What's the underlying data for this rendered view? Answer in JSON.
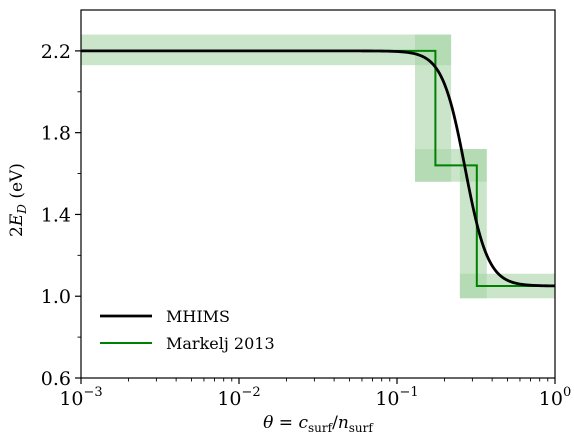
{
  "chart_data": {
    "type": "line",
    "xscale": "log",
    "xlim": [
      0.001,
      1
    ],
    "ylim": [
      0.6,
      2.4
    ],
    "xlabel": "θ = c_surf / n_surf",
    "xlabel_parts": {
      "theta": "θ",
      "eq": " = ",
      "c": "c",
      "c_sub": "surf",
      "slash": "/",
      "n": "n",
      "n_sub": "surf"
    },
    "ylabel": "2E_D (eV)",
    "ylabel_parts": {
      "two": "2",
      "E": "E",
      "sub": "D",
      "unit": " (eV)"
    },
    "x_ticks": [
      {
        "value": 0.001,
        "base": "10",
        "exp": "−3"
      },
      {
        "value": 0.01,
        "base": "10",
        "exp": "−2"
      },
      {
        "value": 0.1,
        "base": "10",
        "exp": "−1"
      },
      {
        "value": 1,
        "base": "10",
        "exp": "0"
      }
    ],
    "y_ticks": [
      {
        "value": 0.6,
        "label": "0.6"
      },
      {
        "value": 1.0,
        "label": "1.0"
      },
      {
        "value": 1.4,
        "label": "1.4"
      },
      {
        "value": 1.8,
        "label": "1.8"
      },
      {
        "value": 2.2,
        "label": "2.2"
      }
    ],
    "y_minor_ticks": [
      0.8,
      1.2,
      1.6,
      2.0
    ],
    "grid": false,
    "legend_position": "lower-left",
    "series": [
      {
        "name": "MHIMS",
        "color": "#000000",
        "style": "smooth",
        "model": {
          "high": 2.2,
          "low": 1.05,
          "center": 0.27,
          "steepness": 6
        }
      },
      {
        "name": "Markelj 2013",
        "color": "#008000",
        "band_color": "#a6d4a6",
        "style": "step",
        "x": [
          0.001,
          0.175,
          0.175,
          0.32,
          0.32,
          1
        ],
        "y": [
          2.2,
          2.2,
          1.64,
          1.64,
          1.05,
          1.05
        ],
        "band": [
          {
            "x0": 0.001,
            "x1": 0.22,
            "y0": 2.13,
            "y1": 2.28
          },
          {
            "x0": 0.13,
            "x1": 0.22,
            "y0": 1.56,
            "y1": 2.28
          },
          {
            "x0": 0.13,
            "x1": 0.37,
            "y0": 1.56,
            "y1": 1.72
          },
          {
            "x0": 0.25,
            "x1": 0.37,
            "y0": 0.99,
            "y1": 1.72
          },
          {
            "x0": 0.25,
            "x1": 1,
            "y0": 0.99,
            "y1": 1.11
          }
        ]
      }
    ]
  }
}
